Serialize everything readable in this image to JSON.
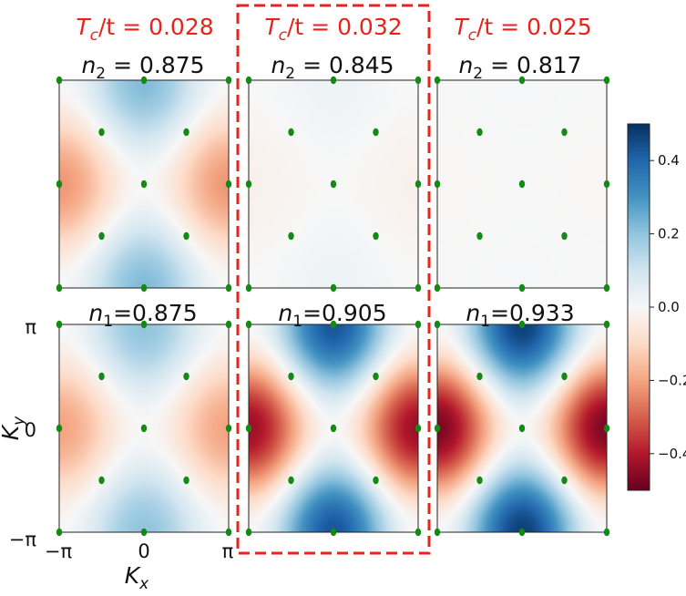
{
  "chart_data": {
    "type": "heatmap",
    "layout": "2 rows x 3 columns of Brillouin-zone heatmaps",
    "xlabel": "K_x",
    "ylabel": "K_y",
    "xticks": [
      "−π",
      "0",
      "π"
    ],
    "yticks": [
      "π",
      "0",
      "−π"
    ],
    "xlim": [
      -3.1416,
      3.1416
    ],
    "ylim": [
      -3.1416,
      3.1416
    ],
    "colorbar": {
      "range": [
        -0.5,
        0.5
      ],
      "ticks": [
        0.4,
        0.2,
        0.0,
        -0.2,
        -0.4
      ],
      "tick_labels": [
        "0.4",
        "0.2",
        "0.0",
        "−0.2",
        "−0.4"
      ],
      "colormap": "RdBu"
    },
    "highlight_column": 1,
    "columns": [
      {
        "tc_label": "T",
        "tc_sub": "c",
        "tc_rest": "/t = 0.028",
        "top_label": "n",
        "top_sub": "2",
        "top_value": " = 0.875",
        "top_amplitude": 0.22,
        "bottom_label": "n",
        "bottom_sub": "1",
        "bottom_value": "=0.875",
        "bottom_amplitude": 0.2
      },
      {
        "tc_label": "T",
        "tc_sub": "c",
        "tc_rest": "/t = 0.032",
        "top_label": "n",
        "top_sub": "2",
        "top_value": " = 0.845",
        "top_amplitude": 0.025,
        "bottom_label": "n",
        "bottom_sub": "1",
        "bottom_value": "=0.905",
        "bottom_amplitude": 0.43
      },
      {
        "tc_label": "T",
        "tc_sub": "c",
        "tc_rest": "/t = 0.025",
        "top_label": "n",
        "top_sub": "2",
        "top_value": " = 0.817",
        "top_amplitude": 0.005,
        "bottom_label": "n",
        "bottom_sub": "1",
        "bottom_value": "=0.933",
        "bottom_amplitude": 0.47
      }
    ],
    "field_model": "value = amplitude * (cos Kx - cos Ky) / 2",
    "marker_points": [
      [
        -3.1416,
        3.1416
      ],
      [
        0,
        3.1416
      ],
      [
        3.1416,
        3.1416
      ],
      [
        -1.5708,
        1.5708
      ],
      [
        1.5708,
        1.5708
      ],
      [
        -3.1416,
        0
      ],
      [
        0,
        0
      ],
      [
        3.1416,
        0
      ],
      [
        -1.5708,
        -1.5708
      ],
      [
        1.5708,
        -1.5708
      ],
      [
        -3.1416,
        -3.1416
      ],
      [
        0,
        -3.1416
      ],
      [
        3.1416,
        -3.1416
      ]
    ],
    "marker_color": "#138a13",
    "highlight_color": "#e8231c"
  }
}
